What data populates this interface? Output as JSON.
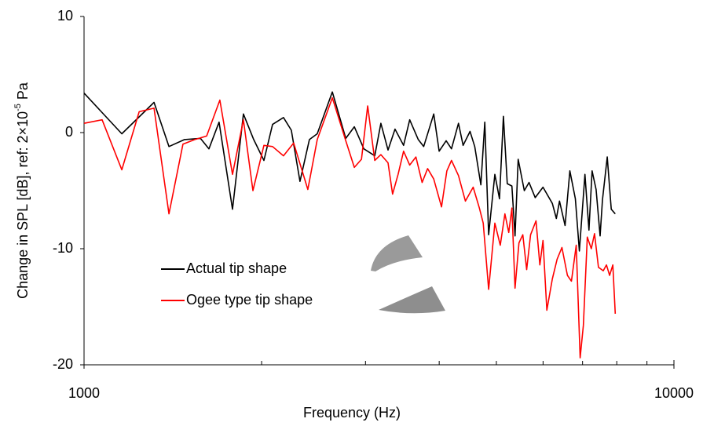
{
  "chart_data": {
    "type": "line",
    "xlabel": "Frequency (Hz)",
    "ylabel_parts": [
      "Change in SPL [dB], ref: 2×10",
      "-5",
      "Pa"
    ],
    "xscale": "log",
    "xlim": [
      1000,
      10000
    ],
    "xticks": [
      1000,
      10000
    ],
    "minor_xticks": [
      2000,
      3000,
      4000,
      5000,
      6000,
      7000,
      8000,
      9000
    ],
    "ylim": [
      -20,
      10
    ],
    "yticks": [
      10,
      0,
      -10,
      -20
    ],
    "legend_position": "lower left",
    "series": [
      {
        "name": "Actual tip shape",
        "color": "#000000",
        "x": [
          1000,
          1159,
          1314,
          1393,
          1480,
          1575,
          1628,
          1694,
          1785,
          1863,
          1939,
          2018,
          2087,
          2178,
          2246,
          2323,
          2410,
          2485,
          2636,
          2778,
          2872,
          2981,
          3110,
          3186,
          3276,
          3366,
          3481,
          3565,
          3686,
          3765,
          3916,
          4000,
          4110,
          4197,
          4313,
          4391,
          4512,
          4595,
          4707,
          4779,
          4852,
          4970,
          5061,
          5139,
          5217,
          5313,
          5378,
          5444,
          5577,
          5680,
          5819,
          5998,
          6222,
          6319,
          6398,
          6538,
          6661,
          6806,
          6913,
          7065,
          7176,
          7266,
          7380,
          7495,
          7566,
          7708,
          7829,
          7952
        ],
        "values": [
          3.4,
          -0.1,
          2.6,
          -1.2,
          -0.6,
          -0.5,
          -1.4,
          0.9,
          -6.6,
          1.6,
          -0.6,
          -2.4,
          0.7,
          1.3,
          0.2,
          -4.2,
          -0.6,
          -0.1,
          3.5,
          -0.5,
          0.5,
          -1.4,
          -2.0,
          0.8,
          -1.5,
          0.3,
          -1.1,
          1.1,
          -0.6,
          -1.2,
          1.6,
          -1.6,
          -0.7,
          -1.4,
          0.8,
          -1.1,
          0.1,
          -1.2,
          -4.5,
          0.9,
          -8.8,
          -3.6,
          -5.7,
          1.4,
          -4.4,
          -4.6,
          -8.9,
          -2.3,
          -5.0,
          -4.3,
          -5.6,
          -4.7,
          -6.1,
          -7.4,
          -5.9,
          -8.0,
          -3.3,
          -5.7,
          -10.2,
          -3.6,
          -8.4,
          -3.3,
          -4.9,
          -8.9,
          -5.8,
          -2.1,
          -6.6,
          -7.0
        ]
      },
      {
        "name": "Ogee type tip shape",
        "color": "#ff0000",
        "x": [
          1000,
          1073,
          1159,
          1240,
          1314,
          1393,
          1471,
          1541,
          1614,
          1699,
          1785,
          1863,
          1933,
          2018,
          2087,
          2178,
          2267,
          2395,
          2485,
          2636,
          2778,
          2872,
          2953,
          3026,
          3110,
          3186,
          3276,
          3335,
          3407,
          3481,
          3565,
          3652,
          3742,
          3823,
          3916,
          4036,
          4122,
          4197,
          4313,
          4431,
          4567,
          4679,
          4750,
          4852,
          4970,
          5077,
          5170,
          5248,
          5313,
          5378,
          5461,
          5543,
          5628,
          5714,
          5837,
          5926,
          5998,
          6090,
          6222,
          6338,
          6458,
          6599,
          6702,
          6828,
          6935,
          7022,
          7131,
          7243,
          7334,
          7449,
          7589,
          7684,
          7780,
          7877,
          7952
        ],
        "values": [
          0.8,
          1.1,
          -3.2,
          1.8,
          2.1,
          -7.0,
          -1.0,
          -0.6,
          -0.3,
          2.8,
          -3.6,
          1.1,
          -5.0,
          -1.1,
          -1.2,
          -2.0,
          -0.9,
          -4.9,
          -0.6,
          3.0,
          -0.7,
          -3.0,
          -2.3,
          2.3,
          -2.4,
          -1.9,
          -2.6,
          -5.3,
          -3.6,
          -1.6,
          -2.8,
          -2.1,
          -4.3,
          -3.1,
          -4.0,
          -6.4,
          -3.3,
          -2.4,
          -3.7,
          -5.9,
          -4.7,
          -6.5,
          -7.8,
          -13.5,
          -7.8,
          -9.7,
          -7.0,
          -8.6,
          -6.5,
          -13.4,
          -9.5,
          -8.8,
          -11.8,
          -8.8,
          -7.6,
          -11.4,
          -9.3,
          -15.3,
          -12.6,
          -10.9,
          -9.9,
          -12.3,
          -12.8,
          -9.7,
          -19.4,
          -16.6,
          -9.0,
          -10.0,
          -8.7,
          -11.6,
          -11.9,
          -11.4,
          -12.3,
          -11.4,
          -15.6
        ]
      }
    ]
  }
}
